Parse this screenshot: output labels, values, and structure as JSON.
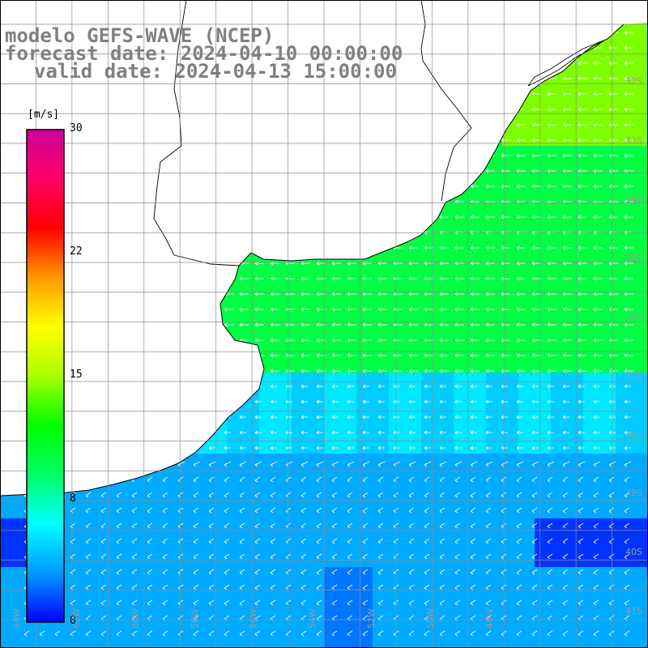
{
  "title": {
    "model": "modelo GEFS-WAVE (NCEP)",
    "forecast": "forecast date: 2024-04-10 00:00:00",
    "valid": "valid date: 2024-04-13 15:00:00"
  },
  "colorbar": {
    "unit": "[m/s]",
    "ticks": [
      "30",
      "22",
      "15",
      "8",
      "0"
    ],
    "tick_values": [
      30,
      22,
      15,
      8,
      0
    ],
    "range": [
      0,
      30
    ],
    "colors": [
      "#0000ff",
      "#0099ff",
      "#00ffff",
      "#00ff66",
      "#00ff00",
      "#aaff00",
      "#ffff00",
      "#ff9900",
      "#ff0000",
      "#ff0066",
      "#cc0099"
    ]
  },
  "map": {
    "variable": "10 m wind speed and direction",
    "lon_range": [
      -65,
      -47
    ],
    "lat_range": [
      -41,
      -31
    ],
    "latitude_labels": [
      "32S",
      "33S",
      "34S",
      "35S",
      "36S",
      "37S",
      "38S",
      "39S",
      "40S",
      "41S"
    ],
    "longitude_labels": [
      "64W",
      "62W",
      "60W",
      "58W",
      "56W",
      "54W",
      "52W",
      "50W",
      "48W"
    ],
    "wind_direction": "from east",
    "colors": {
      "strong": "#7dff00",
      "moderate": "#00ff44",
      "weak": "#00aaff",
      "calm": "#0033ff",
      "land": "#ffffff",
      "coastline": "#000000",
      "grid": "#8c8c8c",
      "arrow": "#ffffff"
    }
  }
}
